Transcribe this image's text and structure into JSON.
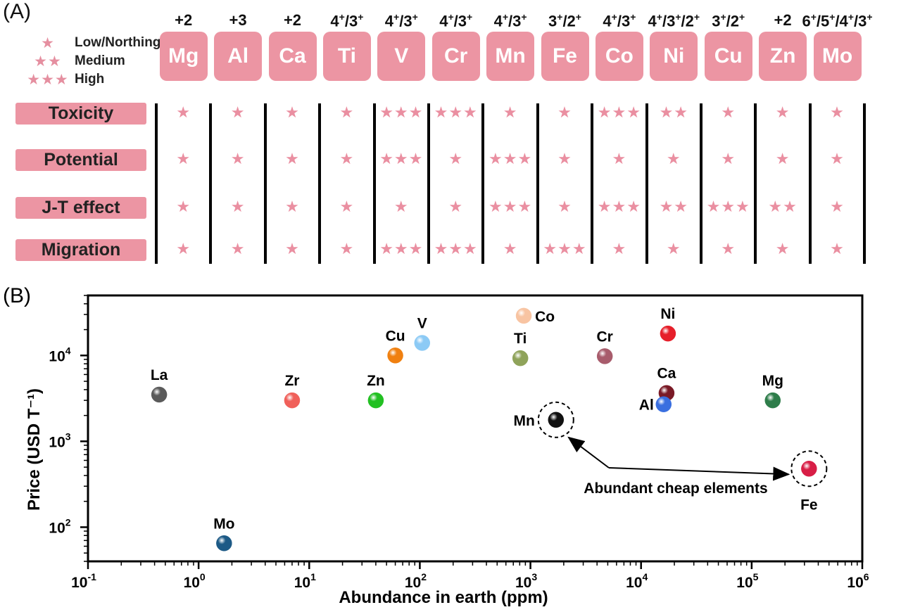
{
  "panel_a": {
    "label": "(A)",
    "legend": [
      {
        "stars": "★",
        "text": "Low/Northing"
      },
      {
        "stars": "★★",
        "text": "Medium"
      },
      {
        "stars": "★★★",
        "text": "High"
      }
    ],
    "elements": [
      {
        "symbol": "Mg",
        "ox_base": [
          "+2"
        ],
        "ox_sup": []
      },
      {
        "symbol": "Al",
        "ox_base": [
          "+3"
        ],
        "ox_sup": []
      },
      {
        "symbol": "Ca",
        "ox_base": [
          "+2"
        ],
        "ox_sup": []
      },
      {
        "symbol": "Ti",
        "ox_base": [
          "4",
          "/3"
        ],
        "ox_sup": [
          "+",
          "+"
        ]
      },
      {
        "symbol": "V",
        "ox_base": [
          "4",
          "/3"
        ],
        "ox_sup": [
          "+",
          "+"
        ]
      },
      {
        "symbol": "Cr",
        "ox_base": [
          "4",
          "/3"
        ],
        "ox_sup": [
          "+",
          "+"
        ]
      },
      {
        "symbol": "Mn",
        "ox_base": [
          "4",
          "/3"
        ],
        "ox_sup": [
          "+",
          "+"
        ]
      },
      {
        "symbol": "Fe",
        "ox_base": [
          "3",
          "/2"
        ],
        "ox_sup": [
          "+",
          "+"
        ]
      },
      {
        "symbol": "Co",
        "ox_base": [
          "4",
          "/3"
        ],
        "ox_sup": [
          "+",
          "+"
        ]
      },
      {
        "symbol": "Ni",
        "ox_base": [
          "4",
          "/3",
          "/2"
        ],
        "ox_sup": [
          "+",
          "+",
          "+"
        ]
      },
      {
        "symbol": "Cu",
        "ox_base": [
          "3",
          "/2"
        ],
        "ox_sup": [
          "+",
          "+"
        ]
      },
      {
        "symbol": "Zn",
        "ox_base": [
          "+2"
        ],
        "ox_sup": []
      },
      {
        "symbol": "Mo",
        "ox_base": [
          "6",
          "/5",
          "/4",
          "/3"
        ],
        "ox_sup": [
          "+",
          "+",
          "+",
          "+"
        ]
      }
    ],
    "properties": [
      {
        "name": "Toxicity",
        "ratings": [
          1,
          1,
          1,
          1,
          3,
          3,
          1,
          1,
          3,
          2,
          1,
          1,
          1
        ]
      },
      {
        "name": "Potential",
        "ratings": [
          1,
          1,
          1,
          1,
          3,
          1,
          3,
          1,
          1,
          1,
          1,
          1,
          1
        ]
      },
      {
        "name": "J-T effect",
        "ratings": [
          1,
          1,
          1,
          1,
          1,
          1,
          3,
          1,
          3,
          2,
          3,
          2,
          1
        ]
      },
      {
        "name": "Migration",
        "ratings": [
          1,
          1,
          1,
          1,
          3,
          3,
          1,
          3,
          1,
          1,
          1,
          1,
          1
        ]
      }
    ],
    "star_color": "#ea8fa1",
    "box_color": "#ec95a3"
  },
  "chart_data": {
    "type": "scatter",
    "panel_label": "(B)",
    "xlabel": "Abundance in earth (ppm)",
    "ylabel": "Price (USD T⁻¹)",
    "x_scale": "log",
    "y_scale": "log",
    "xlim": [
      0.1,
      1000000
    ],
    "ylim": [
      40,
      50000
    ],
    "x_ticks": [
      {
        "base": "10",
        "exp": "-1",
        "value": 0.1
      },
      {
        "base": "10",
        "exp": "0",
        "value": 1
      },
      {
        "base": "10",
        "exp": "1",
        "value": 10
      },
      {
        "base": "10",
        "exp": "2",
        "value": 100
      },
      {
        "base": "10",
        "exp": "3",
        "value": 1000
      },
      {
        "base": "10",
        "exp": "4",
        "value": 10000
      },
      {
        "base": "10",
        "exp": "5",
        "value": 100000
      },
      {
        "base": "10",
        "exp": "6",
        "value": 1000000
      }
    ],
    "y_ticks": [
      {
        "base": "10",
        "exp": "2",
        "value": 100
      },
      {
        "base": "10",
        "exp": "3",
        "value": 1000
      },
      {
        "base": "10",
        "exp": "4",
        "value": 10000
      }
    ],
    "grid": false,
    "points": [
      {
        "label": "La",
        "x": 0.44,
        "y": 3500,
        "color": "#5a5a5a",
        "label_pos": "above"
      },
      {
        "label": "Mo",
        "x": 1.7,
        "y": 65,
        "color": "#1d5a86",
        "label_pos": "above"
      },
      {
        "label": "Zr",
        "x": 7,
        "y": 3000,
        "color": "#f0605a",
        "label_pos": "above"
      },
      {
        "label": "Zn",
        "x": 40,
        "y": 3000,
        "color": "#22c022",
        "label_pos": "above"
      },
      {
        "label": "Cu",
        "x": 60,
        "y": 10000,
        "color": "#f08010",
        "label_pos": "above"
      },
      {
        "label": "V",
        "x": 105,
        "y": 14000,
        "color": "#8ccaf5",
        "label_pos": "above"
      },
      {
        "label": "Co",
        "x": 870,
        "y": 29000,
        "color": "#f8c4a2",
        "label_pos": "right"
      },
      {
        "label": "Ti",
        "x": 810,
        "y": 9300,
        "color": "#8fa35a",
        "label_pos": "above"
      },
      {
        "label": "Mn",
        "x": 1700,
        "y": 1780,
        "color": "#111111",
        "label_pos": "left",
        "highlight": true
      },
      {
        "label": "Cr",
        "x": 4700,
        "y": 9800,
        "color": "#a85c6c",
        "label_pos": "above"
      },
      {
        "label": "Ni",
        "x": 17500,
        "y": 18000,
        "color": "#e61f2a",
        "label_pos": "above"
      },
      {
        "label": "Ca",
        "x": 17000,
        "y": 3650,
        "color": "#7a1a26",
        "label_pos": "above"
      },
      {
        "label": "Al",
        "x": 16000,
        "y": 2700,
        "color": "#3a6fe0",
        "label_pos": "left"
      },
      {
        "label": "Mg",
        "x": 155000,
        "y": 3000,
        "color": "#2e7d4a",
        "label_pos": "above"
      },
      {
        "label": "Fe",
        "x": 330000,
        "y": 480,
        "color": "#d81e46",
        "label_pos": "below",
        "highlight": true
      }
    ],
    "annotation": {
      "text": "Abundant cheap elements",
      "points_to": [
        "Mn",
        "Fe"
      ]
    }
  }
}
